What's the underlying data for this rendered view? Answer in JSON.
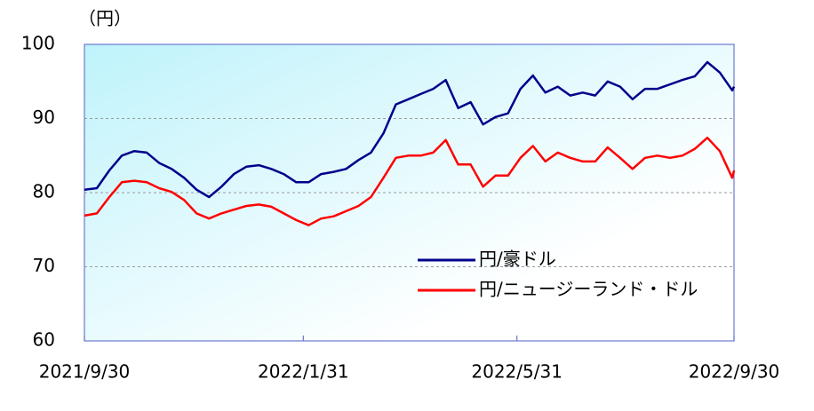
{
  "chart_data": {
    "type": "line",
    "y_unit": "（円）",
    "x": [
      "2021/9/30",
      "2021/10/7",
      "2021/10/14",
      "2021/10/21",
      "2021/10/28",
      "2021/11/4",
      "2021/11/11",
      "2021/11/18",
      "2021/11/25",
      "2021/12/2",
      "2021/12/9",
      "2021/12/16",
      "2021/12/23",
      "2021/12/30",
      "2022/1/6",
      "2022/1/13",
      "2022/1/20",
      "2022/1/27",
      "2022/2/3",
      "2022/2/10",
      "2022/2/17",
      "2022/2/24",
      "2022/3/3",
      "2022/3/10",
      "2022/3/17",
      "2022/3/24",
      "2022/3/31",
      "2022/4/7",
      "2022/4/14",
      "2022/4/21",
      "2022/4/28",
      "2022/5/5",
      "2022/5/12",
      "2022/5/19",
      "2022/5/26",
      "2022/6/2",
      "2022/6/9",
      "2022/6/16",
      "2022/6/23",
      "2022/6/30",
      "2022/7/7",
      "2022/7/14",
      "2022/7/21",
      "2022/7/28",
      "2022/8/4",
      "2022/8/11",
      "2022/8/18",
      "2022/8/25",
      "2022/9/1",
      "2022/9/8",
      "2022/9/15",
      "2022/9/22",
      "2022/9/29",
      "2022/9/30"
    ],
    "series": [
      {
        "name": "円/豪ドル",
        "color": "#00008b",
        "values": [
          80.4,
          80.6,
          83.0,
          85.0,
          85.6,
          85.4,
          84.0,
          83.2,
          82.0,
          80.4,
          79.4,
          80.8,
          82.5,
          83.5,
          83.7,
          83.2,
          82.5,
          81.4,
          81.4,
          82.5,
          82.8,
          83.2,
          84.4,
          85.4,
          88.0,
          91.9,
          92.6,
          93.3,
          94.0,
          95.2,
          91.4,
          92.2,
          89.2,
          90.2,
          90.7,
          94.0,
          95.8,
          93.5,
          94.3,
          93.1,
          93.5,
          93.1,
          95.0,
          94.3,
          92.6,
          94.0,
          94.0,
          94.6,
          95.2,
          95.7,
          97.6,
          96.2,
          93.8,
          94.3
        ]
      },
      {
        "name": "円/ニュージーランド・ドル",
        "color": "#ff0000",
        "values": [
          76.9,
          77.2,
          79.4,
          81.4,
          81.6,
          81.4,
          80.6,
          80.1,
          79.0,
          77.2,
          76.5,
          77.2,
          77.7,
          78.2,
          78.4,
          78.1,
          77.2,
          76.3,
          75.6,
          76.5,
          76.8,
          77.5,
          78.2,
          79.4,
          82.0,
          84.7,
          85.0,
          85.0,
          85.4,
          87.1,
          83.8,
          83.8,
          80.8,
          82.3,
          82.3,
          84.7,
          86.3,
          84.2,
          85.4,
          84.7,
          84.2,
          84.2,
          86.1,
          84.7,
          83.2,
          84.7,
          85.0,
          84.7,
          85.0,
          85.9,
          87.4,
          85.6,
          82.0,
          83.0
        ]
      }
    ],
    "xlim": [
      "2021/9/30",
      "2022/9/30"
    ],
    "xticks": [
      "2021/9/30",
      "2022/1/31",
      "2022/5/31",
      "2022/9/30"
    ],
    "ylim": [
      60,
      100
    ],
    "yticks": [
      60,
      70,
      80,
      90,
      100
    ],
    "grid": true
  }
}
